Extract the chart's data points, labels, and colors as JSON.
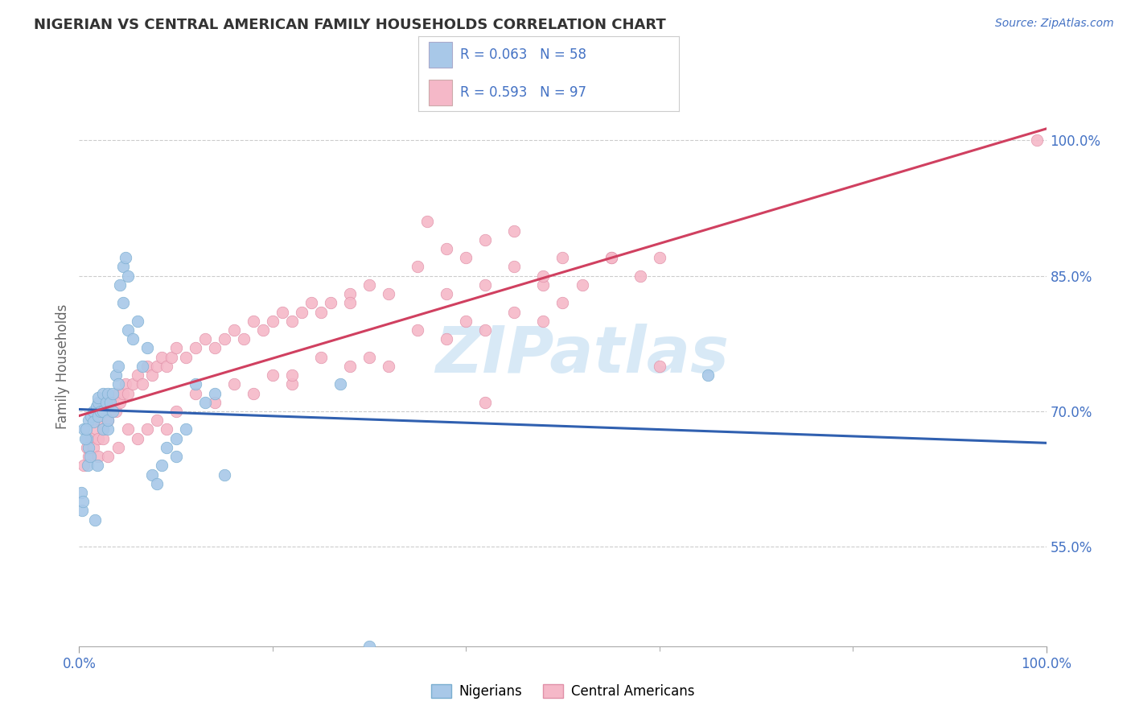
{
  "title": "NIGERIAN VS CENTRAL AMERICAN FAMILY HOUSEHOLDS CORRELATION CHART",
  "source_text": "Source: ZipAtlas.com",
  "ylabel": "Family Households",
  "xmin": 0.0,
  "xmax": 1.0,
  "ymin": 0.44,
  "ymax": 1.06,
  "yticks": [
    0.55,
    0.7,
    0.85,
    1.0
  ],
  "ytick_labels": [
    "55.0%",
    "70.0%",
    "85.0%",
    "100.0%"
  ],
  "xtick_labels": [
    "0.0%",
    "100.0%"
  ],
  "bg_color": "#ffffff",
  "grid_color": "#cccccc",
  "title_color": "#333333",
  "tick_color": "#4472c4",
  "nigerians_color": "#a8c8e8",
  "nigerians_edge": "#7aaed0",
  "central_color": "#f5b8c8",
  "central_edge": "#e090a8",
  "nigerian_line_color": "#3060b0",
  "central_line_color": "#d04060",
  "R_nigerian": 0.063,
  "N_nigerian": 58,
  "R_central": 0.593,
  "N_central": 97,
  "watermark": "ZIPatlas",
  "nigerian_scatter_x": [
    0.005,
    0.008,
    0.01,
    0.01,
    0.012,
    0.015,
    0.015,
    0.018,
    0.02,
    0.02,
    0.02,
    0.022,
    0.025,
    0.025,
    0.025,
    0.028,
    0.03,
    0.03,
    0.03,
    0.032,
    0.035,
    0.035,
    0.038,
    0.04,
    0.04,
    0.042,
    0.045,
    0.045,
    0.048,
    0.05,
    0.05,
    0.055,
    0.06,
    0.065,
    0.07,
    0.075,
    0.08,
    0.085,
    0.09,
    0.1,
    0.1,
    0.11,
    0.12,
    0.13,
    0.14,
    0.15,
    0.002,
    0.003,
    0.004,
    0.006,
    0.007,
    0.009,
    0.011,
    0.016,
    0.019,
    0.27,
    0.65,
    0.3
  ],
  "nigerian_scatter_y": [
    0.68,
    0.67,
    0.69,
    0.66,
    0.695,
    0.7,
    0.688,
    0.705,
    0.71,
    0.695,
    0.715,
    0.7,
    0.72,
    0.68,
    0.7,
    0.71,
    0.72,
    0.68,
    0.69,
    0.71,
    0.72,
    0.7,
    0.74,
    0.75,
    0.73,
    0.84,
    0.86,
    0.82,
    0.87,
    0.85,
    0.79,
    0.78,
    0.8,
    0.75,
    0.77,
    0.63,
    0.62,
    0.64,
    0.66,
    0.65,
    0.67,
    0.68,
    0.73,
    0.71,
    0.72,
    0.63,
    0.61,
    0.59,
    0.6,
    0.67,
    0.68,
    0.64,
    0.65,
    0.58,
    0.64,
    0.73,
    0.74,
    0.44
  ],
  "central_scatter_x": [
    0.005,
    0.008,
    0.01,
    0.012,
    0.015,
    0.018,
    0.02,
    0.022,
    0.025,
    0.028,
    0.03,
    0.032,
    0.035,
    0.038,
    0.04,
    0.042,
    0.045,
    0.048,
    0.05,
    0.055,
    0.06,
    0.065,
    0.07,
    0.075,
    0.08,
    0.085,
    0.09,
    0.095,
    0.1,
    0.11,
    0.12,
    0.13,
    0.14,
    0.15,
    0.16,
    0.17,
    0.18,
    0.19,
    0.2,
    0.21,
    0.22,
    0.23,
    0.24,
    0.25,
    0.26,
    0.28,
    0.3,
    0.32,
    0.35,
    0.38,
    0.4,
    0.42,
    0.45,
    0.48,
    0.5,
    0.52,
    0.55,
    0.58,
    0.6,
    0.02,
    0.025,
    0.03,
    0.04,
    0.05,
    0.06,
    0.07,
    0.08,
    0.09,
    0.1,
    0.12,
    0.14,
    0.16,
    0.18,
    0.2,
    0.22,
    0.25,
    0.28,
    0.3,
    0.32,
    0.35,
    0.38,
    0.4,
    0.42,
    0.45,
    0.48,
    0.5,
    0.38,
    0.42,
    0.45,
    0.48,
    0.6,
    0.99,
    0.36,
    0.55,
    0.28,
    0.22,
    0.42
  ],
  "central_scatter_y": [
    0.64,
    0.66,
    0.65,
    0.67,
    0.66,
    0.68,
    0.67,
    0.69,
    0.68,
    0.7,
    0.69,
    0.7,
    0.71,
    0.7,
    0.72,
    0.71,
    0.72,
    0.73,
    0.72,
    0.73,
    0.74,
    0.73,
    0.75,
    0.74,
    0.75,
    0.76,
    0.75,
    0.76,
    0.77,
    0.76,
    0.77,
    0.78,
    0.77,
    0.78,
    0.79,
    0.78,
    0.8,
    0.79,
    0.8,
    0.81,
    0.8,
    0.81,
    0.82,
    0.81,
    0.82,
    0.83,
    0.84,
    0.83,
    0.86,
    0.83,
    0.87,
    0.84,
    0.86,
    0.84,
    0.87,
    0.84,
    0.87,
    0.85,
    0.87,
    0.65,
    0.67,
    0.65,
    0.66,
    0.68,
    0.67,
    0.68,
    0.69,
    0.68,
    0.7,
    0.72,
    0.71,
    0.73,
    0.72,
    0.74,
    0.73,
    0.76,
    0.75,
    0.76,
    0.75,
    0.79,
    0.78,
    0.8,
    0.79,
    0.81,
    0.8,
    0.82,
    0.88,
    0.89,
    0.9,
    0.85,
    0.75,
    1.0,
    0.91,
    0.87,
    0.82,
    0.74,
    0.71
  ]
}
